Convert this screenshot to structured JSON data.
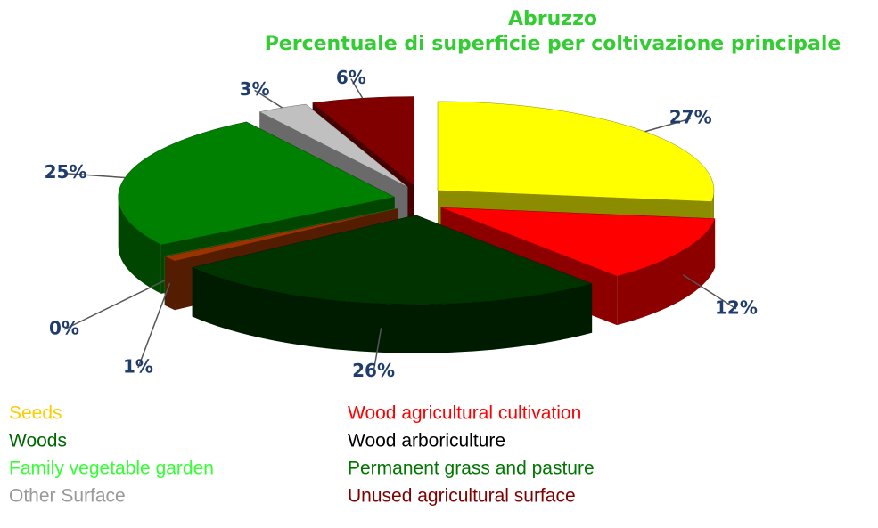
{
  "chart_data": {
    "type": "pie",
    "title": "Abruzzo",
    "subtitle": "Percentuale di superficie per coltivazione principale",
    "categories": [
      "Seeds",
      "Wood agricultural cultivation",
      "Woods",
      "Wood arboriculture",
      "Family vegetable garden",
      "Permanent grass and pasture",
      "Other Surface",
      "Unused agricultural surface"
    ],
    "values": [
      27,
      12,
      26,
      1,
      0,
      25,
      3,
      6
    ],
    "value_labels": [
      "27%",
      "12%",
      "26%",
      "1%",
      "0%",
      "25%",
      "3%",
      "6%"
    ],
    "colors": [
      "#ffff00",
      "#ff0000",
      "#003300",
      "#993300",
      "#33cc33",
      "#008000",
      "#c0c0c0",
      "#800000"
    ],
    "legend_colors": [
      "#ffcc00",
      "#ff0000",
      "#006600",
      "#000000",
      "#33ff33",
      "#007700",
      "#999999",
      "#800000"
    ]
  }
}
